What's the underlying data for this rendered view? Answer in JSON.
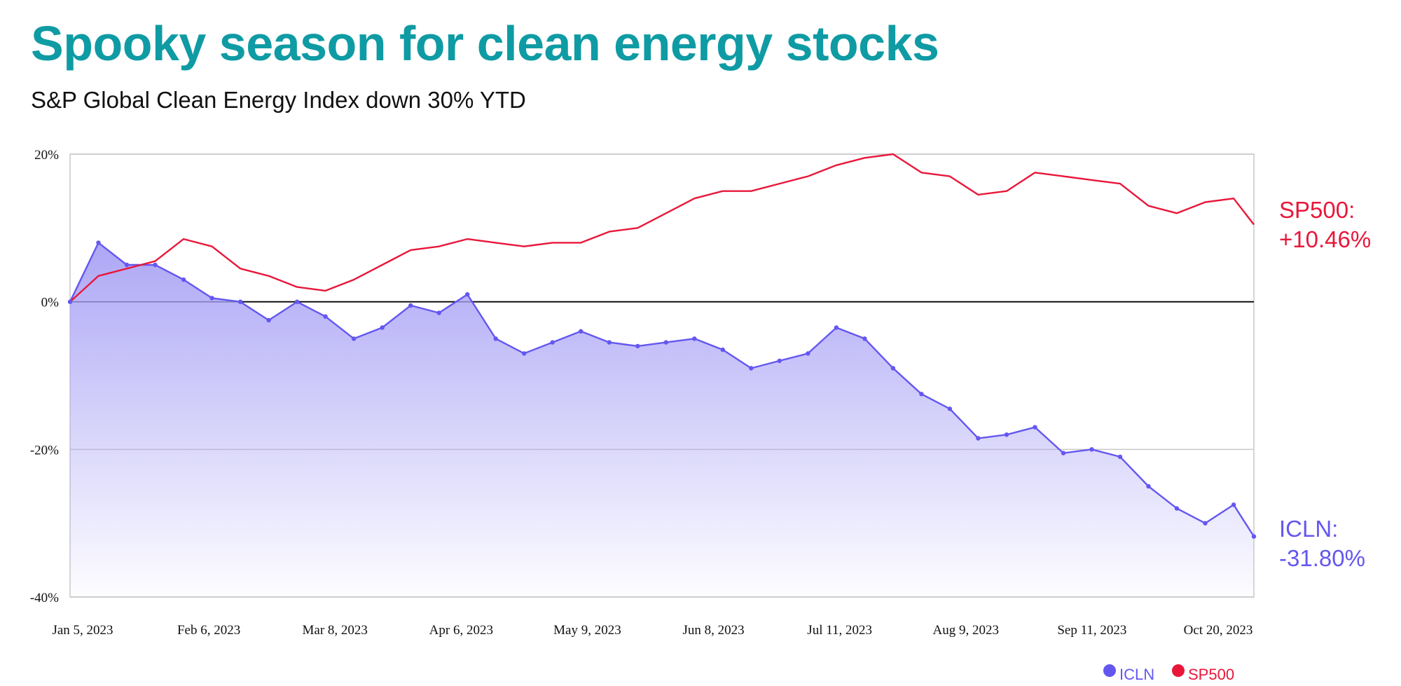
{
  "title": "Spooky season for clean energy stocks",
  "subtitle": "S&P Global Clean Energy Index down 30% YTD",
  "colors": {
    "title": "#0f9ba4",
    "iclnLine": "#6457f0",
    "iclnFill": "#a9a2f5",
    "sp500Line": "#e8173a"
  },
  "chart_data": {
    "type": "line",
    "ylim": [
      -40,
      20
    ],
    "y_ticks": [
      "20%",
      "0%",
      "-20%",
      "-40%"
    ],
    "y_tick_values": [
      20,
      0,
      -20,
      -40
    ],
    "x_ticks": [
      "Jan 5, 2023",
      "Feb 6, 2023",
      "Mar 8, 2023",
      "Apr 6, 2023",
      "May 9, 2023",
      "Jun 8, 2023",
      "Jul 11, 2023",
      "Aug 9, 2023",
      "Sep 11, 2023",
      "Oct 20, 2023"
    ],
    "x": [
      "2023-01-05",
      "2023-01-12",
      "2023-01-19",
      "2023-01-26",
      "2023-02-02",
      "2023-02-09",
      "2023-02-16",
      "2023-02-23",
      "2023-03-02",
      "2023-03-09",
      "2023-03-16",
      "2023-03-23",
      "2023-03-30",
      "2023-04-06",
      "2023-04-13",
      "2023-04-20",
      "2023-04-27",
      "2023-05-04",
      "2023-05-11",
      "2023-05-18",
      "2023-05-25",
      "2023-06-01",
      "2023-06-08",
      "2023-06-15",
      "2023-06-22",
      "2023-06-29",
      "2023-07-06",
      "2023-07-13",
      "2023-07-20",
      "2023-07-27",
      "2023-08-03",
      "2023-08-10",
      "2023-08-17",
      "2023-08-24",
      "2023-08-31",
      "2023-09-07",
      "2023-09-14",
      "2023-09-21",
      "2023-09-28",
      "2023-10-05",
      "2023-10-12",
      "2023-10-19",
      "2023-10-24"
    ],
    "series": [
      {
        "name": "SP500",
        "end_label": [
          "SP500:",
          "+10.46%"
        ],
        "values": [
          0,
          3.5,
          4.5,
          5.5,
          8.5,
          7.5,
          4.5,
          3.5,
          2,
          1.5,
          3,
          5,
          7,
          7.5,
          8.5,
          8,
          7.5,
          8,
          8,
          9.5,
          10,
          12,
          14,
          15,
          15,
          16,
          17,
          18.5,
          19.5,
          20,
          17.5,
          17,
          14.5,
          15,
          17.5,
          17,
          16.5,
          16,
          13,
          12,
          13.5,
          14,
          10.46
        ]
      },
      {
        "name": "ICLN",
        "end_label": [
          "ICLN:",
          "-31.80%"
        ],
        "values": [
          0,
          8,
          5,
          5,
          3,
          0.5,
          0,
          -2.5,
          0,
          -2,
          -5,
          -3.5,
          -0.5,
          -1.5,
          1,
          -5,
          -7,
          -5.5,
          -4,
          -5.5,
          -6,
          -5.5,
          -5,
          -6.5,
          -9,
          -8,
          -7,
          -3.5,
          -5,
          -9,
          -12.5,
          -14.5,
          -18.5,
          -18,
          -17,
          -20.5,
          -20,
          -21,
          -25,
          -28,
          -30,
          -27.5,
          -31.8
        ]
      }
    ]
  },
  "legend": [
    {
      "label": "ICLN",
      "color": "#6457f0"
    },
    {
      "label": "SP500",
      "color": "#e8173a"
    }
  ]
}
